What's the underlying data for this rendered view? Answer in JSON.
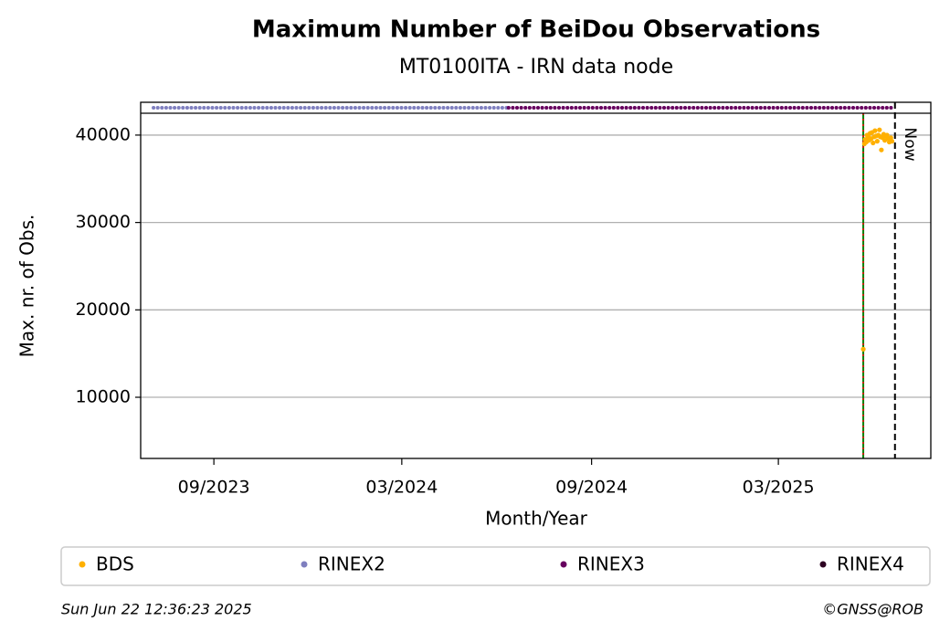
{
  "chart_data": {
    "type": "scatter",
    "title": "Maximum Number of BeiDou Observations",
    "subtitle": "MT0100ITA - IRN data node",
    "x_label": "Month/Year",
    "y_label": "Max. nr. of Obs.",
    "xlim": [
      2023.472,
      2025.566
    ],
    "ylim": [
      3000,
      42500
    ],
    "xticks": [
      {
        "value": 2023.666,
        "label": "09/2023"
      },
      {
        "value": 2024.164,
        "label": "03/2024"
      },
      {
        "value": 2024.667,
        "label": "09/2024"
      },
      {
        "value": 2025.162,
        "label": "03/2025"
      }
    ],
    "yticks": [
      10000,
      20000,
      30000,
      40000
    ],
    "grid": true,
    "series": [
      {
        "name": "BDS",
        "color": "#ffb000",
        "x": [
          2025.387,
          2025.39,
          2025.392,
          2025.395,
          2025.397,
          2025.4,
          2025.402,
          2025.405,
          2025.408,
          2025.41,
          2025.413,
          2025.416,
          2025.418,
          2025.421,
          2025.424,
          2025.427,
          2025.43,
          2025.432,
          2025.435,
          2025.438,
          2025.441,
          2025.444,
          2025.447,
          2025.45,
          2025.453,
          2025.456,
          2025.46,
          2025.463
        ],
        "values": [
          15500,
          39000,
          39500,
          39200,
          40000,
          39800,
          39400,
          40200,
          39600,
          40300,
          39100,
          39800,
          40500,
          39900,
          39300,
          40000,
          40600,
          39800,
          38300,
          39700,
          40100,
          39400,
          39900,
          40000,
          39600,
          39200,
          39700,
          39300
        ]
      },
      {
        "name": "RINEX2",
        "color": "#7f7fbf",
        "start": 2023.506,
        "end": 2024.447
      },
      {
        "name": "RINEX3",
        "color": "#67005f",
        "start": 2024.447,
        "end": 2025.466
      },
      {
        "name": "RINEX4",
        "color": "#2d0022"
      }
    ],
    "start_line": {
      "x": 2025.387,
      "color": "#008000",
      "overlay": "#ff0000"
    },
    "now_line": {
      "x": 2025.471,
      "label": "Now"
    },
    "footer_left": "Sun Jun 22 12:36:23 2025",
    "footer_right": "©GNSS@ROB"
  }
}
